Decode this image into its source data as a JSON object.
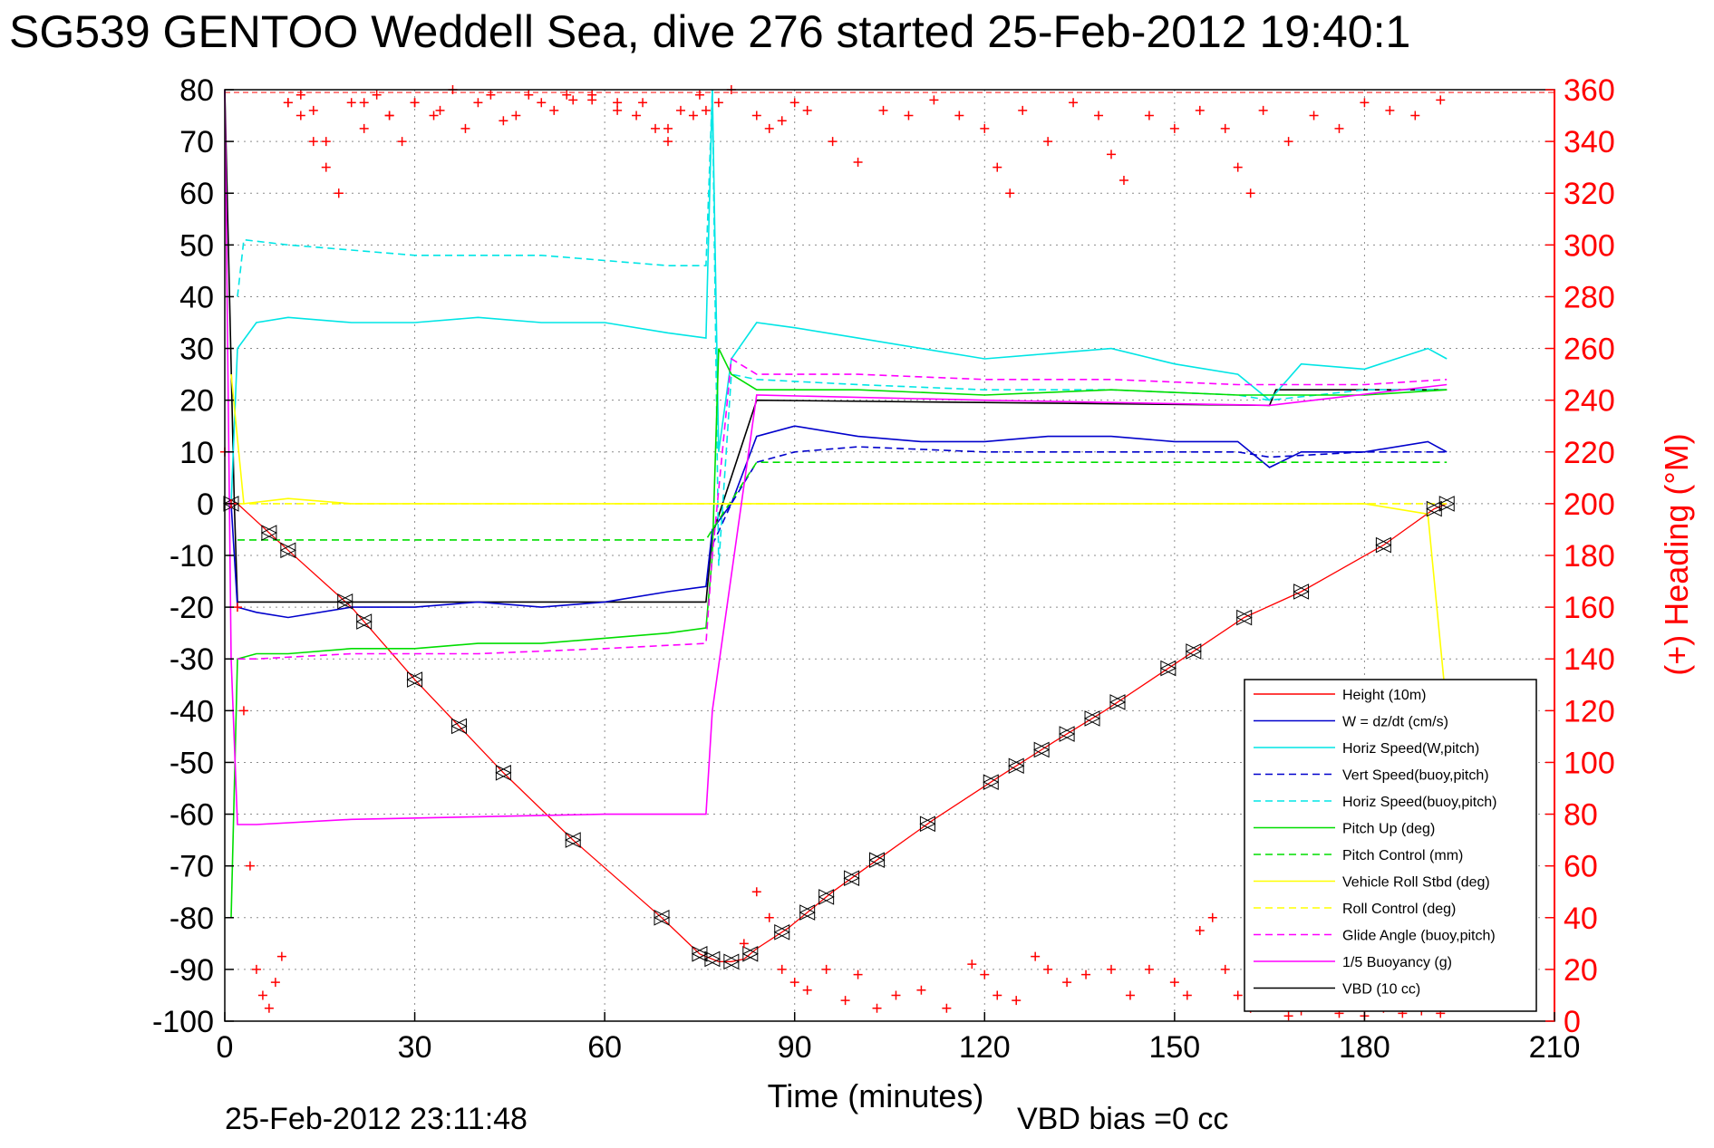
{
  "chart_data": {
    "type": "line",
    "title": "SG539 GENTOO Weddell Sea, dive 276 started 25-Feb-2012 19:40:1",
    "xlabel": "Time (minutes)",
    "ylabel_right": "(+) Heading (°M)",
    "xlim": [
      0,
      210
    ],
    "ylim_left": [
      -100,
      80
    ],
    "ylim_right": [
      0,
      360
    ],
    "xticks": [
      0,
      30,
      60,
      90,
      120,
      150,
      180,
      210
    ],
    "yticks_left": [
      80,
      70,
      60,
      50,
      40,
      30,
      20,
      10,
      0,
      -10,
      -20,
      -30,
      -40,
      -50,
      -60,
      -70,
      -80,
      -90,
      -100
    ],
    "yticks_right": [
      360,
      340,
      320,
      300,
      280,
      260,
      240,
      220,
      200,
      180,
      160,
      140,
      120,
      100,
      80,
      60,
      40,
      20,
      0
    ],
    "grid": true,
    "legend_position": "bottom-right",
    "footer_left": "25-Feb-2012 23:11:48",
    "footer_right": "VBD bias =0 cc",
    "colors": {
      "height": "#ff0000",
      "w": "#0000cc",
      "horiz_w": "#00e5e5",
      "green": "#00dd00",
      "yellow": "#ffff00",
      "magenta": "#ff00ff",
      "vbd": "#000000",
      "heading": "#ff0000",
      "axis_right": "#ff0000"
    },
    "legend": [
      {
        "label": "Height (10m)",
        "color": "#ff0000",
        "dash": false
      },
      {
        "label": "W = dz/dt (cm/s)",
        "color": "#0000cc",
        "dash": false
      },
      {
        "label": "Horiz Speed(W,pitch)",
        "color": "#00e5e5",
        "dash": false
      },
      {
        "label": "Vert Speed(buoy,pitch)",
        "color": "#0000cc",
        "dash": true
      },
      {
        "label": "Horiz Speed(buoy,pitch)",
        "color": "#00e5e5",
        "dash": true
      },
      {
        "label": "Pitch Up (deg)",
        "color": "#00dd00",
        "dash": false
      },
      {
        "label": "Pitch Control (mm)",
        "color": "#00dd00",
        "dash": true
      },
      {
        "label": "Vehicle Roll Stbd (deg)",
        "color": "#ffff00",
        "dash": false
      },
      {
        "label": "Roll Control (deg)",
        "color": "#ffff00",
        "dash": true
      },
      {
        "label": "Glide Angle (buoy,pitch)",
        "color": "#ff00ff",
        "dash": true
      },
      {
        "label": "1/5 Buoyancy (g)",
        "color": "#ff00ff",
        "dash": false
      },
      {
        "label": "VBD (10 cc)",
        "color": "#000000",
        "dash": false
      }
    ],
    "series": [
      {
        "name": "Height (10m)",
        "axis": "left",
        "color": "#ff0000",
        "x": [
          0,
          2,
          10,
          20,
          30,
          37,
          44,
          55,
          69,
          75,
          78,
          80,
          82,
          84,
          89,
          96,
          104,
          112,
          122,
          131,
          139,
          150,
          161,
          170,
          183,
          191,
          193
        ],
        "y": [
          0,
          0,
          -9,
          -20,
          -34,
          -43,
          -52,
          -65,
          -80,
          -87,
          -88.5,
          -88.5,
          -88,
          -86,
          -82,
          -75,
          -68,
          -61,
          -53,
          -46,
          -40,
          -31,
          -22,
          -17,
          -8,
          -1,
          0
        ]
      },
      {
        "name": "VBD (10 cc)",
        "axis": "left",
        "color": "#000000",
        "x": [
          0,
          1.5,
          2,
          76,
          77,
          84,
          165,
          166,
          193
        ],
        "y": [
          80,
          0,
          -19,
          -19,
          -6,
          20,
          19,
          22,
          22
        ]
      },
      {
        "name": "W = dz/dt (cm/s)",
        "axis": "left",
        "color": "#0000cc",
        "x": [
          1,
          2,
          5,
          10,
          20,
          30,
          40,
          50,
          60,
          70,
          76,
          77,
          80,
          84,
          90,
          100,
          110,
          120,
          130,
          140,
          150,
          160,
          165,
          170,
          180,
          190,
          193
        ],
        "y": [
          0,
          -20,
          -21,
          -22,
          -20,
          -20,
          -19,
          -20,
          -19,
          -17,
          -16,
          -5,
          0,
          13,
          15,
          13,
          12,
          12,
          13,
          13,
          12,
          12,
          7,
          10,
          10,
          12,
          10
        ]
      },
      {
        "name": "Vert Speed(buoy,pitch)",
        "axis": "left",
        "color": "#0000cc",
        "dash": true,
        "x": [
          77,
          80,
          84,
          90,
          100,
          120,
          140,
          160,
          165,
          180,
          193
        ],
        "y": [
          -8,
          0,
          8,
          10,
          11,
          10,
          10,
          10,
          9,
          10,
          10
        ]
      },
      {
        "name": "Horiz Speed(W,pitch)",
        "axis": "left",
        "color": "#00e5e5",
        "x": [
          1,
          2,
          5,
          10,
          20,
          30,
          40,
          50,
          60,
          70,
          76,
          77,
          78,
          80,
          84,
          90,
          100,
          110,
          120,
          130,
          140,
          150,
          160,
          165,
          170,
          180,
          190,
          193
        ],
        "y": [
          0,
          30,
          35,
          36,
          35,
          35,
          36,
          35,
          35,
          33,
          32,
          80,
          10,
          28,
          35,
          34,
          32,
          30,
          28,
          29,
          30,
          27,
          25,
          20,
          27,
          26,
          30,
          28
        ]
      },
      {
        "name": "Horiz Speed(buoy,pitch)",
        "axis": "left",
        "color": "#00e5e5",
        "dash": true,
        "x": [
          2,
          3,
          10,
          20,
          30,
          40,
          50,
          60,
          70,
          76,
          77,
          78,
          80,
          84,
          100,
          120,
          140,
          160,
          165,
          180,
          193
        ],
        "y": [
          40,
          51,
          50,
          49,
          48,
          48,
          48,
          47,
          46,
          46,
          80,
          -12,
          25,
          24,
          23,
          22,
          22,
          21,
          20,
          22,
          22
        ]
      },
      {
        "name": "Pitch Up (deg)",
        "axis": "left",
        "color": "#00dd00",
        "x": [
          1,
          2,
          5,
          10,
          20,
          30,
          40,
          50,
          60,
          70,
          76,
          77,
          78,
          80,
          84,
          90,
          100,
          120,
          140,
          160,
          165,
          180,
          193
        ],
        "y": [
          -80,
          -30,
          -29,
          -29,
          -28,
          -28,
          -27,
          -27,
          -26,
          -25,
          -24,
          -10,
          30,
          25,
          22,
          22,
          22,
          21,
          22,
          21,
          21,
          21,
          22
        ]
      },
      {
        "name": "Pitch Control (mm)",
        "axis": "left",
        "color": "#00dd00",
        "dash": true,
        "x": [
          2,
          76,
          77,
          84,
          193
        ],
        "y": [
          -7,
          -7,
          -5,
          8,
          8
        ]
      },
      {
        "name": "Vehicle Roll Stbd (deg)",
        "axis": "left",
        "color": "#ffff00",
        "x": [
          1,
          3,
          10,
          20,
          30,
          40,
          50,
          60,
          70,
          76,
          80,
          90,
          100,
          110,
          120,
          130,
          140,
          150,
          160,
          170,
          180,
          190,
          193
        ],
        "y": [
          25,
          0,
          1,
          0,
          0,
          0,
          0,
          0,
          0,
          0,
          0,
          0,
          0,
          0,
          0,
          0,
          0,
          0,
          0,
          0,
          0,
          -2,
          -40
        ]
      },
      {
        "name": "Roll Control (deg)",
        "axis": "left",
        "color": "#ffff00",
        "dash": true,
        "x": [
          2,
          76,
          77,
          193
        ],
        "y": [
          0,
          0,
          0,
          0
        ]
      },
      {
        "name": "Glide Angle (buoy,pitch)",
        "axis": "left",
        "color": "#ff00ff",
        "dash": true,
        "x": [
          2,
          5,
          20,
          40,
          60,
          76,
          77,
          80,
          84,
          100,
          120,
          140,
          160,
          165,
          180,
          193
        ],
        "y": [
          -30,
          -30,
          -29,
          -29,
          -28,
          -27,
          -10,
          28,
          25,
          25,
          24,
          24,
          23,
          23,
          23,
          24
        ]
      },
      {
        "name": "1/5 Buoyancy (g)",
        "axis": "left",
        "color": "#ff00ff",
        "x": [
          0,
          1,
          2,
          5,
          20,
          40,
          60,
          76,
          77,
          84,
          120,
          165,
          193
        ],
        "y": [
          80,
          -30,
          -62,
          -62,
          -61,
          -60.5,
          -60,
          -60,
          -40,
          21,
          20,
          19,
          23
        ]
      }
    ],
    "heading": {
      "name": "(+) Heading (°M)",
      "axis": "right",
      "color": "#ff0000",
      "marker": "+",
      "x": [
        0,
        1,
        2,
        3,
        4,
        5,
        6,
        7,
        8,
        9,
        10,
        12,
        14,
        16,
        18,
        20,
        22,
        24,
        26,
        28,
        30,
        33,
        36,
        40,
        44,
        48,
        52,
        55,
        58,
        62,
        65,
        68,
        70,
        72,
        75,
        78,
        80,
        82,
        84,
        86,
        88,
        90,
        92,
        95,
        98,
        100,
        103,
        106,
        110,
        114,
        118,
        120,
        122,
        125,
        128,
        130,
        133,
        136,
        140,
        143,
        146,
        150,
        152,
        154,
        156,
        158,
        160,
        162,
        165,
        168,
        170,
        173,
        176,
        180,
        183,
        186,
        189,
        192
      ],
      "y": [
        220,
        200,
        160,
        120,
        60,
        20,
        10,
        5,
        15,
        25,
        355,
        350,
        340,
        330,
        320,
        355,
        345,
        358,
        350,
        340,
        355,
        350,
        360,
        355,
        348,
        358,
        352,
        356,
        358,
        355,
        350,
        345,
        340,
        352,
        358,
        355,
        360,
        30,
        50,
        40,
        20,
        15,
        12,
        20,
        8,
        18,
        5,
        10,
        12,
        5,
        22,
        18,
        10,
        8,
        25,
        20,
        15,
        18,
        20,
        10,
        20,
        15,
        10,
        35,
        40,
        20,
        10,
        5,
        8,
        2,
        4,
        6,
        3,
        2,
        5,
        3,
        4,
        3
      ],
      "upper_x": [
        10,
        12,
        14,
        16,
        18,
        22,
        26,
        30,
        34,
        38,
        42,
        46,
        50,
        54,
        58,
        62,
        66,
        70,
        74,
        76,
        84,
        86,
        88,
        90,
        92,
        96,
        100,
        104,
        108,
        112,
        116,
        120,
        122,
        124,
        126,
        130,
        134,
        138,
        140,
        142,
        146,
        150,
        154,
        158,
        160,
        162,
        164,
        168,
        172,
        176,
        180,
        184,
        188,
        192
      ],
      "upper_y": [
        355,
        358,
        352,
        340,
        320,
        355,
        350,
        355,
        352,
        345,
        358,
        350,
        355,
        358,
        356,
        352,
        355,
        345,
        350,
        352,
        350,
        345,
        348,
        355,
        352,
        340,
        332,
        352,
        350,
        356,
        350,
        345,
        330,
        320,
        352,
        340,
        355,
        350,
        335,
        325,
        350,
        345,
        352,
        345,
        330,
        320,
        352,
        340,
        350,
        345,
        355,
        352,
        350,
        356
      ]
    },
    "height_markers_x": [
      1,
      7,
      10,
      19,
      22,
      30,
      37,
      44,
      55,
      69,
      75,
      77,
      80,
      83,
      88,
      92,
      95,
      99,
      103,
      111,
      121,
      125,
      129,
      133,
      137,
      141,
      149,
      153,
      161,
      170,
      183,
      191,
      193
    ]
  }
}
